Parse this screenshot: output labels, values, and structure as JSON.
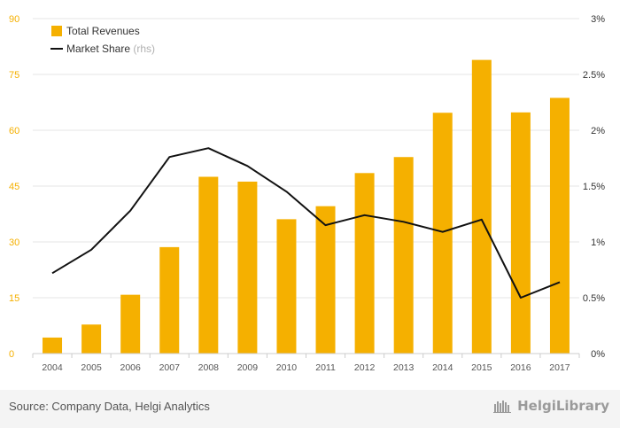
{
  "chart_data": {
    "type": "bar",
    "categories": [
      "2004",
      "2005",
      "2006",
      "2007",
      "2008",
      "2009",
      "2010",
      "2011",
      "2012",
      "2013",
      "2014",
      "2015",
      "2016",
      "2017"
    ],
    "series": [
      {
        "name": "Total Revenues",
        "type": "bar",
        "axis": "left",
        "color": "#f5b000",
        "values": [
          4.3,
          7.8,
          15.8,
          28.6,
          47.5,
          46.2,
          36.1,
          39.6,
          48.5,
          52.8,
          64.7,
          78.9,
          64.8,
          68.7
        ]
      },
      {
        "name": "Market Share",
        "name_suffix": "(rhs)",
        "type": "line",
        "axis": "right",
        "color": "#111111",
        "values": [
          0.72,
          0.93,
          1.28,
          1.76,
          1.84,
          1.68,
          1.45,
          1.15,
          1.24,
          1.18,
          1.09,
          1.2,
          0.5,
          0.64
        ]
      }
    ],
    "y_left": {
      "min": 0,
      "max": 90,
      "ticks": [
        "0",
        "15",
        "30",
        "45",
        "60",
        "75",
        "90"
      ],
      "color": "#f5b000"
    },
    "y_right": {
      "min": 0,
      "max": 3,
      "ticks": [
        "0%",
        "0.5%",
        "1%",
        "1.5%",
        "2%",
        "2.5%",
        "3%"
      ]
    },
    "grid": true,
    "legend_position": "top-left"
  },
  "footer": {
    "source": "Source: Company Data, Helgi Analytics",
    "brand": "HelgiLibrary"
  }
}
